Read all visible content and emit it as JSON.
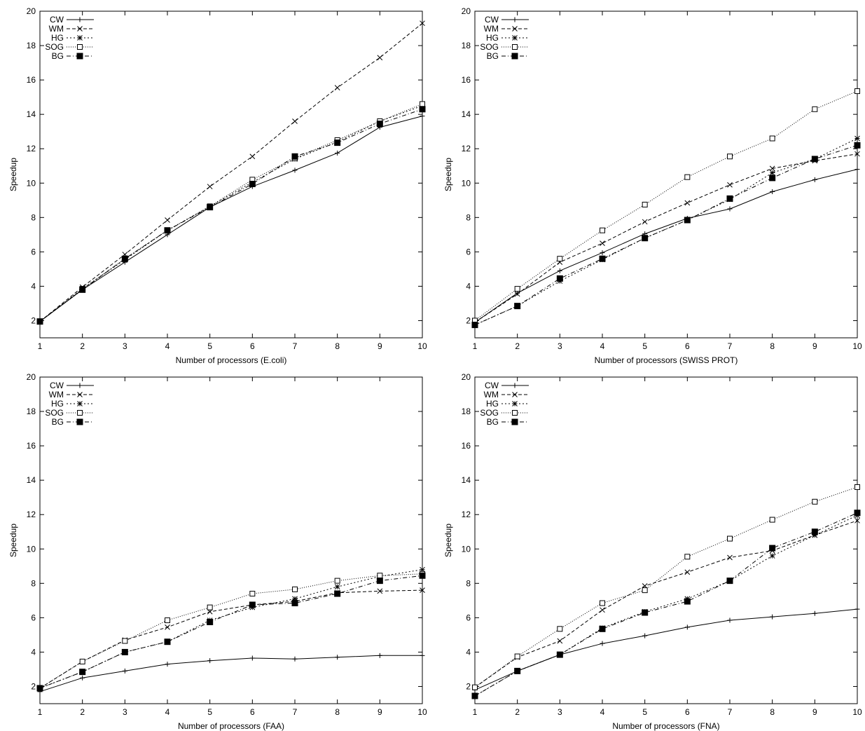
{
  "chart_data": [
    {
      "type": "line",
      "xlabel": "Number of processors (E.coli)",
      "ylabel": "Speedup",
      "x": [
        1,
        2,
        3,
        4,
        5,
        6,
        7,
        8,
        9,
        10
      ],
      "xlim": [
        1,
        10
      ],
      "ylim": [
        1,
        20
      ],
      "yticks": [
        2,
        4,
        6,
        8,
        10,
        12,
        14,
        16,
        18,
        20
      ],
      "legend_position": "top-left",
      "grid": false,
      "series": [
        {
          "name": "CW",
          "marker": "plus",
          "dash": "solid",
          "values": [
            1.95,
            3.8,
            5.4,
            7.0,
            8.6,
            9.8,
            10.75,
            11.75,
            13.25,
            13.9
          ]
        },
        {
          "name": "WM",
          "marker": "cross",
          "dash": "dashed",
          "values": [
            1.95,
            3.95,
            5.85,
            7.85,
            9.8,
            11.55,
            13.6,
            15.55,
            17.3,
            19.3
          ]
        },
        {
          "name": "HG",
          "marker": "star",
          "dash": "dotted",
          "values": [
            1.95,
            3.85,
            5.55,
            7.25,
            8.65,
            10.05,
            11.4,
            12.4,
            13.6,
            14.5
          ]
        },
        {
          "name": "SOG",
          "marker": "open-square",
          "dash": "fine-dot",
          "values": [
            1.95,
            3.85,
            5.6,
            7.25,
            8.65,
            10.2,
            11.45,
            12.5,
            13.6,
            14.6
          ]
        },
        {
          "name": "BG",
          "marker": "filled-square",
          "dash": "dashdot",
          "values": [
            1.95,
            3.8,
            5.6,
            7.25,
            8.6,
            9.95,
            11.55,
            12.35,
            13.45,
            14.3
          ]
        }
      ]
    },
    {
      "type": "line",
      "xlabel": "Number of processors (SWISS PROT)",
      "ylabel": "Speedup",
      "x": [
        1,
        2,
        3,
        4,
        5,
        6,
        7,
        8,
        9,
        10
      ],
      "xlim": [
        1,
        10
      ],
      "ylim": [
        1,
        20
      ],
      "yticks": [
        2,
        4,
        6,
        8,
        10,
        12,
        14,
        16,
        18,
        20
      ],
      "legend_position": "top-left",
      "grid": false,
      "series": [
        {
          "name": "CW",
          "marker": "plus",
          "dash": "solid",
          "values": [
            1.9,
            3.6,
            4.9,
            5.95,
            7.05,
            7.95,
            8.5,
            9.5,
            10.2,
            10.8
          ]
        },
        {
          "name": "WM",
          "marker": "cross",
          "dash": "dashed",
          "values": [
            1.9,
            3.55,
            5.4,
            6.5,
            7.75,
            8.85,
            9.9,
            10.85,
            11.3,
            11.7
          ]
        },
        {
          "name": "HG",
          "marker": "star",
          "dash": "dotted",
          "values": [
            1.75,
            2.85,
            4.3,
            5.55,
            6.8,
            7.85,
            9.05,
            10.6,
            11.4,
            12.6
          ]
        },
        {
          "name": "SOG",
          "marker": "open-square",
          "dash": "fine-dot",
          "values": [
            2.0,
            3.85,
            5.6,
            7.25,
            8.75,
            10.35,
            11.55,
            12.6,
            14.3,
            15.35
          ]
        },
        {
          "name": "BG",
          "marker": "filled-square",
          "dash": "dashdot",
          "values": [
            1.75,
            2.85,
            4.45,
            5.6,
            6.8,
            7.85,
            9.1,
            10.3,
            11.4,
            12.2
          ]
        }
      ]
    },
    {
      "type": "line",
      "xlabel": "Number of processors (FAA)",
      "ylabel": "Speedup",
      "x": [
        1,
        2,
        3,
        4,
        5,
        6,
        7,
        8,
        9,
        10
      ],
      "xlim": [
        1,
        10
      ],
      "ylim": [
        1,
        20
      ],
      "yticks": [
        2,
        4,
        6,
        8,
        10,
        12,
        14,
        16,
        18,
        20
      ],
      "legend_position": "top-left",
      "grid": false,
      "series": [
        {
          "name": "CW",
          "marker": "plus",
          "dash": "solid",
          "values": [
            1.7,
            2.5,
            2.9,
            3.3,
            3.5,
            3.65,
            3.6,
            3.7,
            3.8,
            3.8
          ]
        },
        {
          "name": "WM",
          "marker": "cross",
          "dash": "dashed",
          "values": [
            1.9,
            3.45,
            4.7,
            5.45,
            6.35,
            6.75,
            6.95,
            7.45,
            7.55,
            7.6
          ]
        },
        {
          "name": "HG",
          "marker": "star",
          "dash": "dotted",
          "values": [
            1.9,
            2.85,
            4.0,
            4.6,
            5.85,
            6.6,
            7.1,
            7.8,
            8.4,
            8.8
          ]
        },
        {
          "name": "SOG",
          "marker": "open-square",
          "dash": "fine-dot",
          "values": [
            1.9,
            3.45,
            4.65,
            5.85,
            6.6,
            7.4,
            7.65,
            8.15,
            8.45,
            8.55
          ]
        },
        {
          "name": "BG",
          "marker": "filled-square",
          "dash": "dashdot",
          "values": [
            1.9,
            2.85,
            4.0,
            4.6,
            5.75,
            6.75,
            6.85,
            7.4,
            8.15,
            8.45
          ]
        }
      ]
    },
    {
      "type": "line",
      "xlabel": "Number of processors (FNA)",
      "ylabel": "Speedup",
      "x": [
        1,
        2,
        3,
        4,
        5,
        6,
        7,
        8,
        9,
        10
      ],
      "xlim": [
        1,
        10
      ],
      "ylim": [
        1,
        20
      ],
      "yticks": [
        2,
        4,
        6,
        8,
        10,
        12,
        14,
        16,
        18,
        20
      ],
      "legend_position": "top-left",
      "grid": false,
      "series": [
        {
          "name": "CW",
          "marker": "plus",
          "dash": "solid",
          "values": [
            1.8,
            2.9,
            3.85,
            4.5,
            4.95,
            5.45,
            5.85,
            6.05,
            6.25,
            6.5
          ]
        },
        {
          "name": "WM",
          "marker": "cross",
          "dash": "dashed",
          "values": [
            1.95,
            3.7,
            4.65,
            6.45,
            7.85,
            8.65,
            9.5,
            9.9,
            10.8,
            11.65
          ]
        },
        {
          "name": "HG",
          "marker": "star",
          "dash": "dotted",
          "values": [
            1.45,
            2.9,
            3.85,
            5.4,
            6.35,
            7.1,
            8.15,
            9.6,
            10.8,
            11.95
          ]
        },
        {
          "name": "SOG",
          "marker": "open-square",
          "dash": "fine-dot",
          "values": [
            1.95,
            3.75,
            5.35,
            6.85,
            7.6,
            9.55,
            10.6,
            11.7,
            12.75,
            13.6
          ]
        },
        {
          "name": "BG",
          "marker": "filled-square",
          "dash": "dashdot",
          "values": [
            1.45,
            2.9,
            3.85,
            5.35,
            6.3,
            6.95,
            8.15,
            10.05,
            11.0,
            12.1
          ]
        }
      ]
    }
  ]
}
